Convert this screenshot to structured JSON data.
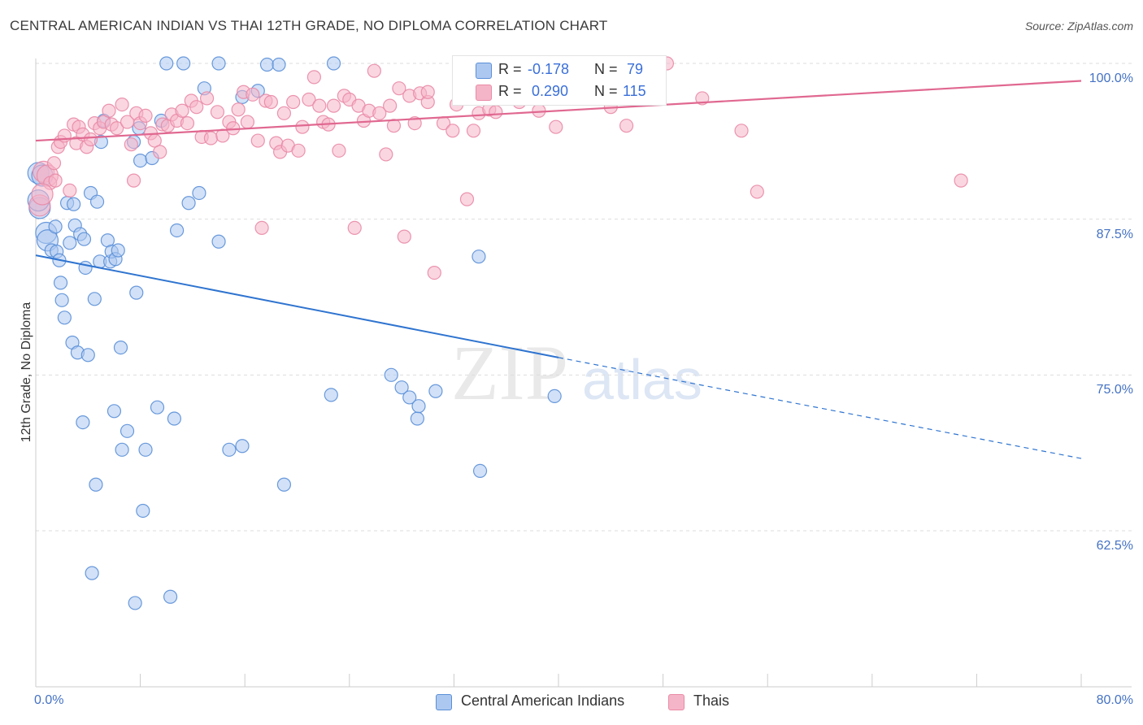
{
  "header": {
    "title": "CENTRAL AMERICAN INDIAN VS THAI 12TH GRADE, NO DIPLOMA CORRELATION CHART",
    "source": "Source: ZipAtlas.com"
  },
  "watermark": {
    "zip": "ZIP",
    "atlas": "atlas"
  },
  "legend_top": {
    "rows": [
      {
        "r_label": "R = ",
        "r_value": "-0.178",
        "n_label": "N = ",
        "n_value": "79"
      },
      {
        "r_label": "R = ",
        "r_value": " 0.290",
        "n_label": "N = ",
        "n_value": "115"
      }
    ]
  },
  "legend_bottom": {
    "items": [
      {
        "label": "Central American Indians"
      },
      {
        "label": "Thais"
      }
    ]
  },
  "colors": {
    "blue_fill": "#adc8f0",
    "blue_stroke": "#5a8fd8",
    "blue_line": "#2f74d0",
    "pink_fill": "#f5b5c8",
    "pink_stroke": "#e98aa6",
    "pink_line": "#e06890",
    "grid": "#dddddd",
    "tick_text": "#4472c4"
  },
  "chart_data": {
    "type": "scatter",
    "title": "CENTRAL AMERICAN INDIAN VS THAI 12TH GRADE, NO DIPLOMA CORRELATION CHART",
    "xlabel": "",
    "ylabel": "12th Grade, No Diploma",
    "xlim": [
      0,
      80
    ],
    "ylim": [
      50,
      101
    ],
    "x_tick_labels": [
      "0.0%",
      "80.0%"
    ],
    "y_ticks": [
      62.5,
      75.0,
      87.5,
      100.0
    ],
    "y_tick_labels": [
      "62.5%",
      "75.0%",
      "87.5%",
      "100.0%"
    ],
    "grid": "horizontal dashed",
    "series": [
      {
        "name": "Central American Indians",
        "color": "#adc8f0",
        "r": -0.178,
        "n": 79,
        "trend": {
          "x0": 0.0,
          "y0": 84.6,
          "x1": 40.0,
          "y1": 76.4,
          "dash_to_x": 80.0,
          "dash_to_y": 68.3
        },
        "points": [
          [
            0.2,
            91.2
          ],
          [
            0.3,
            88.4
          ],
          [
            0.8,
            86.4
          ],
          [
            0.9,
            85.8
          ],
          [
            1.2,
            85.0
          ],
          [
            1.5,
            86.9
          ],
          [
            1.6,
            84.9
          ],
          [
            1.8,
            84.2
          ],
          [
            1.9,
            82.4
          ],
          [
            2.0,
            81.0
          ],
          [
            2.2,
            79.6
          ],
          [
            2.4,
            88.8
          ],
          [
            2.6,
            85.6
          ],
          [
            2.8,
            77.6
          ],
          [
            2.9,
            88.7
          ],
          [
            3.0,
            87.0
          ],
          [
            3.2,
            76.8
          ],
          [
            3.4,
            86.3
          ],
          [
            3.6,
            71.2
          ],
          [
            3.7,
            85.9
          ],
          [
            3.8,
            83.6
          ],
          [
            4.0,
            76.6
          ],
          [
            4.2,
            89.6
          ],
          [
            4.5,
            81.1
          ],
          [
            4.6,
            66.2
          ],
          [
            4.7,
            88.9
          ],
          [
            4.9,
            84.1
          ],
          [
            5.0,
            93.7
          ],
          [
            5.2,
            95.4
          ],
          [
            5.5,
            85.8
          ],
          [
            5.7,
            84.1
          ],
          [
            5.8,
            84.9
          ],
          [
            6.0,
            72.1
          ],
          [
            6.1,
            84.3
          ],
          [
            6.3,
            85.0
          ],
          [
            6.5,
            77.2
          ],
          [
            6.6,
            69.0
          ],
          [
            7.0,
            70.5
          ],
          [
            7.5,
            93.7
          ],
          [
            7.7,
            81.6
          ],
          [
            7.9,
            94.8
          ],
          [
            8.0,
            92.2
          ],
          [
            8.2,
            64.1
          ],
          [
            8.4,
            69.0
          ],
          [
            8.9,
            92.4
          ],
          [
            9.3,
            72.4
          ],
          [
            9.6,
            95.4
          ],
          [
            10.0,
            100.0
          ],
          [
            10.3,
            57.2
          ],
          [
            10.6,
            71.5
          ],
          [
            10.8,
            86.6
          ],
          [
            11.3,
            100.0
          ],
          [
            11.7,
            88.8
          ],
          [
            12.5,
            89.6
          ],
          [
            12.9,
            98.0
          ],
          [
            14.0,
            100.0
          ],
          [
            14.0,
            85.7
          ],
          [
            14.8,
            69.0
          ],
          [
            15.8,
            69.3
          ],
          [
            15.8,
            97.3
          ],
          [
            17.0,
            97.8
          ],
          [
            17.7,
            99.9
          ],
          [
            18.6,
            99.9
          ],
          [
            19.0,
            66.2
          ],
          [
            22.6,
            73.4
          ],
          [
            22.8,
            100.0
          ],
          [
            27.2,
            75.0
          ],
          [
            28.0,
            74.0
          ],
          [
            28.6,
            73.2
          ],
          [
            29.2,
            71.5
          ],
          [
            29.3,
            72.5
          ],
          [
            30.6,
            73.7
          ],
          [
            33.9,
            84.5
          ],
          [
            34.0,
            67.3
          ],
          [
            39.7,
            73.3
          ],
          [
            0.2,
            89.0
          ],
          [
            0.5,
            91.0
          ],
          [
            4.3,
            59.1
          ],
          [
            7.6,
            56.7
          ]
        ]
      },
      {
        "name": "Thais",
        "color": "#f5b5c8",
        "r": 0.29,
        "n": 115,
        "trend": {
          "x0": 0.0,
          "y0": 93.8,
          "x1": 80.0,
          "y1": 98.6
        },
        "points": [
          [
            0.3,
            88.6
          ],
          [
            0.6,
            91.3
          ],
          [
            0.9,
            91.0
          ],
          [
            1.1,
            90.4
          ],
          [
            1.4,
            92.0
          ],
          [
            1.7,
            93.3
          ],
          [
            1.9,
            93.7
          ],
          [
            2.2,
            94.2
          ],
          [
            2.6,
            89.8
          ],
          [
            2.9,
            95.1
          ],
          [
            3.1,
            93.6
          ],
          [
            3.3,
            94.9
          ],
          [
            3.6,
            94.3
          ],
          [
            3.9,
            93.3
          ],
          [
            4.2,
            93.9
          ],
          [
            4.5,
            95.2
          ],
          [
            4.9,
            94.8
          ],
          [
            5.2,
            95.3
          ],
          [
            5.6,
            96.2
          ],
          [
            5.8,
            95.1
          ],
          [
            6.2,
            94.8
          ],
          [
            6.6,
            96.7
          ],
          [
            7.0,
            95.3
          ],
          [
            7.3,
            93.5
          ],
          [
            7.5,
            90.6
          ],
          [
            7.7,
            96.0
          ],
          [
            8.0,
            95.2
          ],
          [
            8.4,
            95.8
          ],
          [
            8.8,
            94.4
          ],
          [
            9.1,
            93.8
          ],
          [
            9.5,
            92.9
          ],
          [
            9.7,
            95.1
          ],
          [
            10.1,
            95.0
          ],
          [
            10.4,
            95.9
          ],
          [
            10.8,
            95.4
          ],
          [
            11.2,
            96.2
          ],
          [
            11.6,
            95.2
          ],
          [
            11.9,
            97.0
          ],
          [
            12.3,
            96.5
          ],
          [
            12.7,
            94.1
          ],
          [
            13.1,
            97.2
          ],
          [
            13.4,
            94.0
          ],
          [
            13.9,
            96.1
          ],
          [
            14.3,
            94.2
          ],
          [
            14.8,
            95.3
          ],
          [
            15.1,
            94.8
          ],
          [
            15.5,
            96.3
          ],
          [
            15.9,
            97.7
          ],
          [
            16.2,
            95.3
          ],
          [
            16.6,
            97.5
          ],
          [
            17.0,
            93.8
          ],
          [
            17.3,
            86.8
          ],
          [
            17.6,
            97.0
          ],
          [
            18.0,
            96.9
          ],
          [
            18.4,
            93.6
          ],
          [
            18.7,
            92.9
          ],
          [
            19.0,
            96.0
          ],
          [
            19.3,
            93.4
          ],
          [
            19.7,
            96.9
          ],
          [
            20.1,
            93.0
          ],
          [
            20.4,
            94.9
          ],
          [
            20.9,
            97.1
          ],
          [
            21.3,
            98.9
          ],
          [
            21.7,
            96.6
          ],
          [
            22.0,
            95.3
          ],
          [
            22.4,
            95.1
          ],
          [
            22.8,
            96.6
          ],
          [
            23.2,
            93.0
          ],
          [
            23.6,
            97.4
          ],
          [
            24.0,
            97.1
          ],
          [
            24.4,
            86.8
          ],
          [
            24.7,
            96.6
          ],
          [
            25.1,
            95.4
          ],
          [
            25.5,
            96.2
          ],
          [
            25.9,
            99.4
          ],
          [
            26.3,
            96.0
          ],
          [
            26.8,
            92.7
          ],
          [
            27.1,
            96.6
          ],
          [
            27.4,
            95.0
          ],
          [
            27.8,
            98.0
          ],
          [
            28.2,
            86.1
          ],
          [
            28.6,
            97.4
          ],
          [
            29.0,
            95.2
          ],
          [
            29.4,
            97.6
          ],
          [
            30.0,
            96.9
          ],
          [
            30.5,
            83.2
          ],
          [
            31.2,
            95.2
          ],
          [
            31.9,
            94.6
          ],
          [
            32.2,
            96.7
          ],
          [
            33.0,
            89.1
          ],
          [
            33.5,
            94.6
          ],
          [
            33.9,
            96.0
          ],
          [
            34.7,
            96.3
          ],
          [
            35.2,
            96.1
          ],
          [
            36.0,
            97.4
          ],
          [
            37.0,
            96.9
          ],
          [
            38.5,
            96.2
          ],
          [
            39.3,
            98.5
          ],
          [
            39.8,
            94.9
          ],
          [
            45.2,
            95.0
          ],
          [
            47.4,
            99.3
          ],
          [
            48.3,
            100.0
          ],
          [
            51.0,
            97.2
          ],
          [
            54.0,
            94.6
          ],
          [
            55.2,
            89.7
          ],
          [
            70.8,
            90.6
          ],
          [
            35.0,
            97.8
          ],
          [
            33.2,
            100.0
          ],
          [
            30.0,
            97.7
          ],
          [
            37.5,
            97.9
          ],
          [
            39.0,
            99.0
          ],
          [
            37.0,
            100.0
          ],
          [
            44.0,
            96.5
          ],
          [
            1.5,
            90.6
          ],
          [
            0.5,
            89.5
          ]
        ]
      }
    ]
  }
}
